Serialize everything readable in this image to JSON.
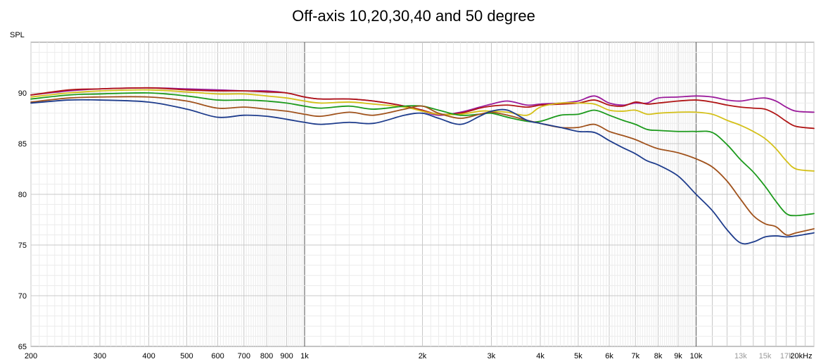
{
  "chart_data": {
    "type": "line",
    "title": "Off-axis 10,20,30,40 and 50 degree",
    "ylabel": "SPL",
    "xlabel": "",
    "x_scale": "log",
    "xlim": [
      200,
      20000
    ],
    "ylim": [
      65,
      95
    ],
    "grid": true,
    "y_ticks": [
      65,
      70,
      75,
      80,
      85,
      90
    ],
    "x_ticks": [
      {
        "value": 200,
        "label": "200"
      },
      {
        "value": 300,
        "label": "300"
      },
      {
        "value": 400,
        "label": "400"
      },
      {
        "value": 500,
        "label": "500"
      },
      {
        "value": 600,
        "label": "600"
      },
      {
        "value": 700,
        "label": "700"
      },
      {
        "value": 800,
        "label": "800"
      },
      {
        "value": 900,
        "label": "900"
      },
      {
        "value": 1000,
        "label": "1k"
      },
      {
        "value": 2000,
        "label": "2k"
      },
      {
        "value": 3000,
        "label": "3k"
      },
      {
        "value": 4000,
        "label": "4k"
      },
      {
        "value": 5000,
        "label": "5k"
      },
      {
        "value": 6000,
        "label": "6k"
      },
      {
        "value": 7000,
        "label": "7k"
      },
      {
        "value": 8000,
        "label": "8k"
      },
      {
        "value": 9000,
        "label": "9k"
      },
      {
        "value": 10000,
        "label": "10k"
      },
      {
        "value": 13000,
        "label": "13k",
        "dim": true
      },
      {
        "value": 15000,
        "label": "15k",
        "dim": true
      },
      {
        "value": 17000,
        "label": "17k",
        "dim": true
      },
      {
        "value": 20000,
        "label": "20kHz"
      }
    ],
    "series": [
      {
        "color": "#9b1b9b",
        "values": [
          [
            200,
            89.8
          ],
          [
            250,
            90.2
          ],
          [
            300,
            90.4
          ],
          [
            400,
            90.5
          ],
          [
            500,
            90.4
          ],
          [
            600,
            90.3
          ],
          [
            700,
            90.2
          ],
          [
            800,
            90.2
          ],
          [
            900,
            90.0
          ],
          [
            1000,
            89.6
          ],
          [
            1100,
            89.4
          ],
          [
            1300,
            89.4
          ],
          [
            1500,
            89.2
          ],
          [
            1800,
            88.7
          ],
          [
            2000,
            88.2
          ],
          [
            2200,
            87.8
          ],
          [
            2500,
            88.1
          ],
          [
            2800,
            88.6
          ],
          [
            3000,
            88.9
          ],
          [
            3300,
            89.2
          ],
          [
            3700,
            88.8
          ],
          [
            4000,
            88.9
          ],
          [
            4500,
            89.0
          ],
          [
            5000,
            89.2
          ],
          [
            5500,
            89.7
          ],
          [
            6000,
            89.0
          ],
          [
            6500,
            88.8
          ],
          [
            7000,
            89.0
          ],
          [
            7500,
            89.0
          ],
          [
            8000,
            89.5
          ],
          [
            9000,
            89.6
          ],
          [
            10000,
            89.7
          ],
          [
            11000,
            89.6
          ],
          [
            12000,
            89.3
          ],
          [
            13000,
            89.2
          ],
          [
            14000,
            89.4
          ],
          [
            15000,
            89.5
          ],
          [
            16000,
            89.2
          ],
          [
            17000,
            88.6
          ],
          [
            18000,
            88.2
          ],
          [
            20000,
            88.1
          ]
        ]
      },
      {
        "color": "#b01515",
        "values": [
          [
            200,
            89.8
          ],
          [
            250,
            90.3
          ],
          [
            300,
            90.4
          ],
          [
            400,
            90.5
          ],
          [
            500,
            90.3
          ],
          [
            600,
            90.2
          ],
          [
            700,
            90.2
          ],
          [
            800,
            90.1
          ],
          [
            900,
            90.0
          ],
          [
            1000,
            89.6
          ],
          [
            1100,
            89.4
          ],
          [
            1300,
            89.4
          ],
          [
            1500,
            89.2
          ],
          [
            1800,
            88.7
          ],
          [
            2000,
            88.3
          ],
          [
            2200,
            87.9
          ],
          [
            2500,
            88.0
          ],
          [
            2800,
            88.5
          ],
          [
            3000,
            88.7
          ],
          [
            3300,
            88.8
          ],
          [
            3700,
            88.6
          ],
          [
            4000,
            88.8
          ],
          [
            4500,
            88.9
          ],
          [
            5000,
            89.0
          ],
          [
            5500,
            89.3
          ],
          [
            6000,
            88.8
          ],
          [
            6500,
            88.7
          ],
          [
            7000,
            89.1
          ],
          [
            7500,
            88.9
          ],
          [
            8000,
            89.0
          ],
          [
            9000,
            89.2
          ],
          [
            10000,
            89.3
          ],
          [
            11000,
            89.1
          ],
          [
            12000,
            88.8
          ],
          [
            13000,
            88.6
          ],
          [
            14000,
            88.5
          ],
          [
            15000,
            88.4
          ],
          [
            16000,
            87.9
          ],
          [
            17000,
            87.2
          ],
          [
            18000,
            86.7
          ],
          [
            20000,
            86.5
          ]
        ]
      },
      {
        "color": "#d4c018",
        "values": [
          [
            200,
            89.6
          ],
          [
            250,
            90.0
          ],
          [
            300,
            90.2
          ],
          [
            400,
            90.3
          ],
          [
            500,
            90.1
          ],
          [
            600,
            89.9
          ],
          [
            700,
            89.9
          ],
          [
            800,
            89.7
          ],
          [
            900,
            89.5
          ],
          [
            1000,
            89.2
          ],
          [
            1100,
            89.0
          ],
          [
            1300,
            89.1
          ],
          [
            1500,
            88.9
          ],
          [
            1800,
            88.6
          ],
          [
            2000,
            88.2
          ],
          [
            2200,
            87.9
          ],
          [
            2500,
            87.9
          ],
          [
            2800,
            88.2
          ],
          [
            3000,
            88.2
          ],
          [
            3300,
            88.1
          ],
          [
            3700,
            87.8
          ],
          [
            4000,
            88.6
          ],
          [
            4500,
            89.0
          ],
          [
            5000,
            89.0
          ],
          [
            5500,
            88.9
          ],
          [
            6000,
            88.3
          ],
          [
            6500,
            88.2
          ],
          [
            7000,
            88.3
          ],
          [
            7500,
            87.9
          ],
          [
            8000,
            88.0
          ],
          [
            9000,
            88.1
          ],
          [
            10000,
            88.1
          ],
          [
            11000,
            87.9
          ],
          [
            12000,
            87.3
          ],
          [
            13000,
            86.8
          ],
          [
            14000,
            86.2
          ],
          [
            15000,
            85.5
          ],
          [
            16000,
            84.5
          ],
          [
            17000,
            83.3
          ],
          [
            18000,
            82.5
          ],
          [
            20000,
            82.3
          ]
        ]
      },
      {
        "color": "#1c9a1c",
        "values": [
          [
            200,
            89.4
          ],
          [
            250,
            89.8
          ],
          [
            300,
            89.9
          ],
          [
            400,
            90.0
          ],
          [
            500,
            89.7
          ],
          [
            600,
            89.3
          ],
          [
            700,
            89.3
          ],
          [
            800,
            89.2
          ],
          [
            900,
            89.0
          ],
          [
            1000,
            88.7
          ],
          [
            1100,
            88.5
          ],
          [
            1300,
            88.7
          ],
          [
            1500,
            88.4
          ],
          [
            1800,
            88.7
          ],
          [
            2000,
            88.7
          ],
          [
            2200,
            88.3
          ],
          [
            2500,
            87.8
          ],
          [
            2800,
            87.9
          ],
          [
            3000,
            88.0
          ],
          [
            3300,
            87.6
          ],
          [
            3700,
            87.2
          ],
          [
            4000,
            87.2
          ],
          [
            4500,
            87.8
          ],
          [
            5000,
            87.9
          ],
          [
            5500,
            88.3
          ],
          [
            6000,
            87.8
          ],
          [
            6500,
            87.3
          ],
          [
            7000,
            86.9
          ],
          [
            7500,
            86.4
          ],
          [
            8000,
            86.3
          ],
          [
            9000,
            86.2
          ],
          [
            10000,
            86.2
          ],
          [
            11000,
            86.1
          ],
          [
            12000,
            84.9
          ],
          [
            13000,
            83.4
          ],
          [
            14000,
            82.2
          ],
          [
            15000,
            80.8
          ],
          [
            16000,
            79.3
          ],
          [
            17000,
            78.1
          ],
          [
            18000,
            77.9
          ],
          [
            20000,
            78.1
          ]
        ]
      },
      {
        "color": "#a0521c",
        "values": [
          [
            200,
            89.1
          ],
          [
            250,
            89.5
          ],
          [
            300,
            89.6
          ],
          [
            400,
            89.6
          ],
          [
            500,
            89.2
          ],
          [
            600,
            88.5
          ],
          [
            700,
            88.6
          ],
          [
            800,
            88.4
          ],
          [
            900,
            88.2
          ],
          [
            1000,
            87.9
          ],
          [
            1100,
            87.7
          ],
          [
            1300,
            88.1
          ],
          [
            1500,
            87.8
          ],
          [
            1800,
            88.4
          ],
          [
            2000,
            88.7
          ],
          [
            2200,
            88.0
          ],
          [
            2500,
            87.5
          ],
          [
            2800,
            87.9
          ],
          [
            3000,
            88.1
          ],
          [
            3300,
            87.8
          ],
          [
            3700,
            87.3
          ],
          [
            4000,
            87.0
          ],
          [
            4500,
            86.6
          ],
          [
            5000,
            86.6
          ],
          [
            5500,
            86.9
          ],
          [
            6000,
            86.2
          ],
          [
            6500,
            85.8
          ],
          [
            7000,
            85.4
          ],
          [
            7500,
            84.9
          ],
          [
            8000,
            84.5
          ],
          [
            9000,
            84.1
          ],
          [
            10000,
            83.5
          ],
          [
            11000,
            82.7
          ],
          [
            12000,
            81.3
          ],
          [
            13000,
            79.5
          ],
          [
            14000,
            77.9
          ],
          [
            15000,
            77.1
          ],
          [
            16000,
            76.8
          ],
          [
            17000,
            76.0
          ],
          [
            18000,
            76.2
          ],
          [
            20000,
            76.6
          ]
        ]
      },
      {
        "color": "#1e3c8c",
        "values": [
          [
            200,
            89.0
          ],
          [
            250,
            89.3
          ],
          [
            300,
            89.3
          ],
          [
            400,
            89.1
          ],
          [
            500,
            88.4
          ],
          [
            600,
            87.6
          ],
          [
            700,
            87.8
          ],
          [
            800,
            87.7
          ],
          [
            900,
            87.4
          ],
          [
            1000,
            87.1
          ],
          [
            1100,
            86.9
          ],
          [
            1300,
            87.1
          ],
          [
            1500,
            87.0
          ],
          [
            1800,
            87.8
          ],
          [
            2000,
            88.0
          ],
          [
            2200,
            87.5
          ],
          [
            2500,
            86.9
          ],
          [
            2800,
            87.7
          ],
          [
            3000,
            88.2
          ],
          [
            3300,
            88.3
          ],
          [
            3700,
            87.3
          ],
          [
            4000,
            87.0
          ],
          [
            4500,
            86.6
          ],
          [
            5000,
            86.2
          ],
          [
            5500,
            86.1
          ],
          [
            6000,
            85.3
          ],
          [
            6500,
            84.6
          ],
          [
            7000,
            84.0
          ],
          [
            7500,
            83.3
          ],
          [
            8000,
            82.9
          ],
          [
            9000,
            81.8
          ],
          [
            10000,
            80.0
          ],
          [
            11000,
            78.4
          ],
          [
            12000,
            76.5
          ],
          [
            13000,
            75.2
          ],
          [
            14000,
            75.3
          ],
          [
            15000,
            75.8
          ],
          [
            16000,
            75.9
          ],
          [
            17000,
            75.8
          ],
          [
            18000,
            75.9
          ],
          [
            20000,
            76.2
          ]
        ]
      }
    ]
  }
}
